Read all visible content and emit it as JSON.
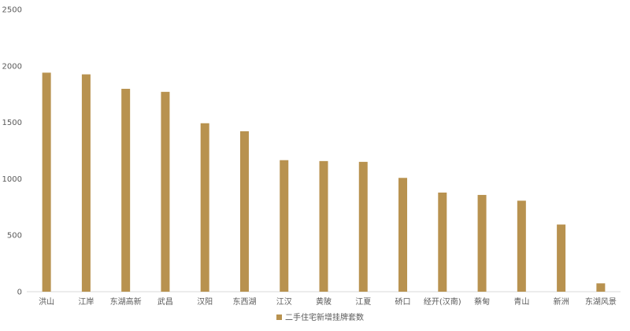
{
  "chart_data": {
    "type": "bar",
    "categories": [
      "洪山",
      "江岸",
      "东湖高新",
      "武昌",
      "汉阳",
      "东西湖",
      "江汉",
      "黄陂",
      "江夏",
      "硚口",
      "经开(汉南)",
      "蔡甸",
      "青山",
      "新洲",
      "东湖风景"
    ],
    "series": [
      {
        "name": "二手住宅新增挂牌套数",
        "values": [
          1940,
          1925,
          1797,
          1770,
          1492,
          1421,
          1165,
          1157,
          1150,
          1008,
          878,
          857,
          806,
          595,
          74
        ],
        "color": "#b8924f"
      }
    ],
    "ylim": [
      0,
      2500
    ],
    "yticks": [
      0,
      500,
      1000,
      1500,
      2000,
      2500
    ],
    "grid": false,
    "legend_position": "bottom"
  }
}
